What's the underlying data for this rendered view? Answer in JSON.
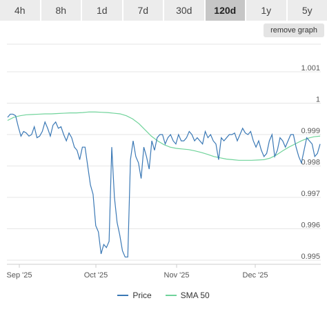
{
  "tabs": [
    {
      "label": "4h",
      "active": false
    },
    {
      "label": "8h",
      "active": false
    },
    {
      "label": "1d",
      "active": false
    },
    {
      "label": "7d",
      "active": false
    },
    {
      "label": "30d",
      "active": false
    },
    {
      "label": "120d",
      "active": true
    },
    {
      "label": "1y",
      "active": false
    },
    {
      "label": "5y",
      "active": false
    }
  ],
  "remove_graph_label": "remove graph",
  "legend": {
    "price_label": "Price",
    "sma_label": "SMA 50"
  },
  "colors": {
    "price": "#3a78b5",
    "sma": "#6fd39a",
    "grid": "#e6e6e6"
  },
  "chart_data": {
    "type": "line",
    "x_tick_labels": [
      "Sep '25",
      "Oct '25",
      "Nov '25",
      "Dec '25"
    ],
    "y_tick_labels": [
      "0.995",
      "0.996",
      "0.997",
      "0.998",
      "0.999",
      "1",
      "1.001"
    ],
    "ylim": [
      0.995,
      1.001
    ],
    "grid": true,
    "legend_position": "bottom",
    "series": [
      {
        "name": "Price",
        "values": [
          0.99955,
          0.99965,
          0.99965,
          0.9996,
          0.99925,
          0.99895,
          0.9991,
          0.99905,
          0.99895,
          0.999,
          0.99925,
          0.9989,
          0.99895,
          0.9991,
          0.9994,
          0.9992,
          0.99895,
          0.9993,
          0.9994,
          0.9992,
          0.99925,
          0.999,
          0.9988,
          0.99905,
          0.9989,
          0.9986,
          0.9985,
          0.9982,
          0.9986,
          0.9986,
          0.998,
          0.9974,
          0.9971,
          0.9961,
          0.9959,
          0.9952,
          0.9955,
          0.9954,
          0.9956,
          0.9986,
          0.997,
          0.9962,
          0.9958,
          0.9953,
          0.9951,
          0.9951,
          0.9982,
          0.9988,
          0.9983,
          0.9981,
          0.9976,
          0.9986,
          0.9983,
          0.9979,
          0.9988,
          0.9985,
          0.9989,
          0.999,
          0.999,
          0.9987,
          0.9989,
          0.999,
          0.9988,
          0.9987,
          0.999,
          0.9988,
          0.9988,
          0.9989,
          0.9991,
          0.999,
          0.9988,
          0.9989,
          0.9988,
          0.9987,
          0.9991,
          0.9989,
          0.999,
          0.9988,
          0.9987,
          0.9982,
          0.9989,
          0.9988,
          0.9989,
          0.999,
          0.999,
          0.99905,
          0.9988,
          0.999,
          0.9992,
          0.99905,
          0.999,
          0.9991,
          0.9988,
          0.9986,
          0.9988,
          0.9985,
          0.9983,
          0.9984,
          0.9988,
          0.999,
          0.9983,
          0.9985,
          0.9989,
          0.9988,
          0.9986,
          0.9988,
          0.999,
          0.999,
          0.9986,
          0.9983,
          0.9981,
          0.9985,
          0.9989,
          0.9988,
          0.9987,
          0.9983,
          0.9984,
          0.9987
        ]
      },
      {
        "name": "SMA 50",
        "values": [
          0.99945,
          0.99955,
          0.9996,
          0.99963,
          0.99964,
          0.99965,
          0.99966,
          0.99966,
          0.99967,
          0.99968,
          0.99969,
          0.99969,
          0.9997,
          0.99972,
          0.99972,
          0.99971,
          0.9997,
          0.99968,
          0.99966,
          0.9996,
          0.9995,
          0.99935,
          0.99915,
          0.99895,
          0.9988,
          0.99868,
          0.9986,
          0.99856,
          0.99854,
          0.99852,
          0.99848,
          0.99843,
          0.99837,
          0.9983,
          0.99826,
          0.99822,
          0.9982,
          0.99818,
          0.99818,
          0.99818,
          0.99819,
          0.9982,
          0.99825,
          0.99835,
          0.99848,
          0.9986,
          0.9987,
          0.9988,
          0.99888,
          0.99893,
          0.99895
        ]
      }
    ]
  }
}
